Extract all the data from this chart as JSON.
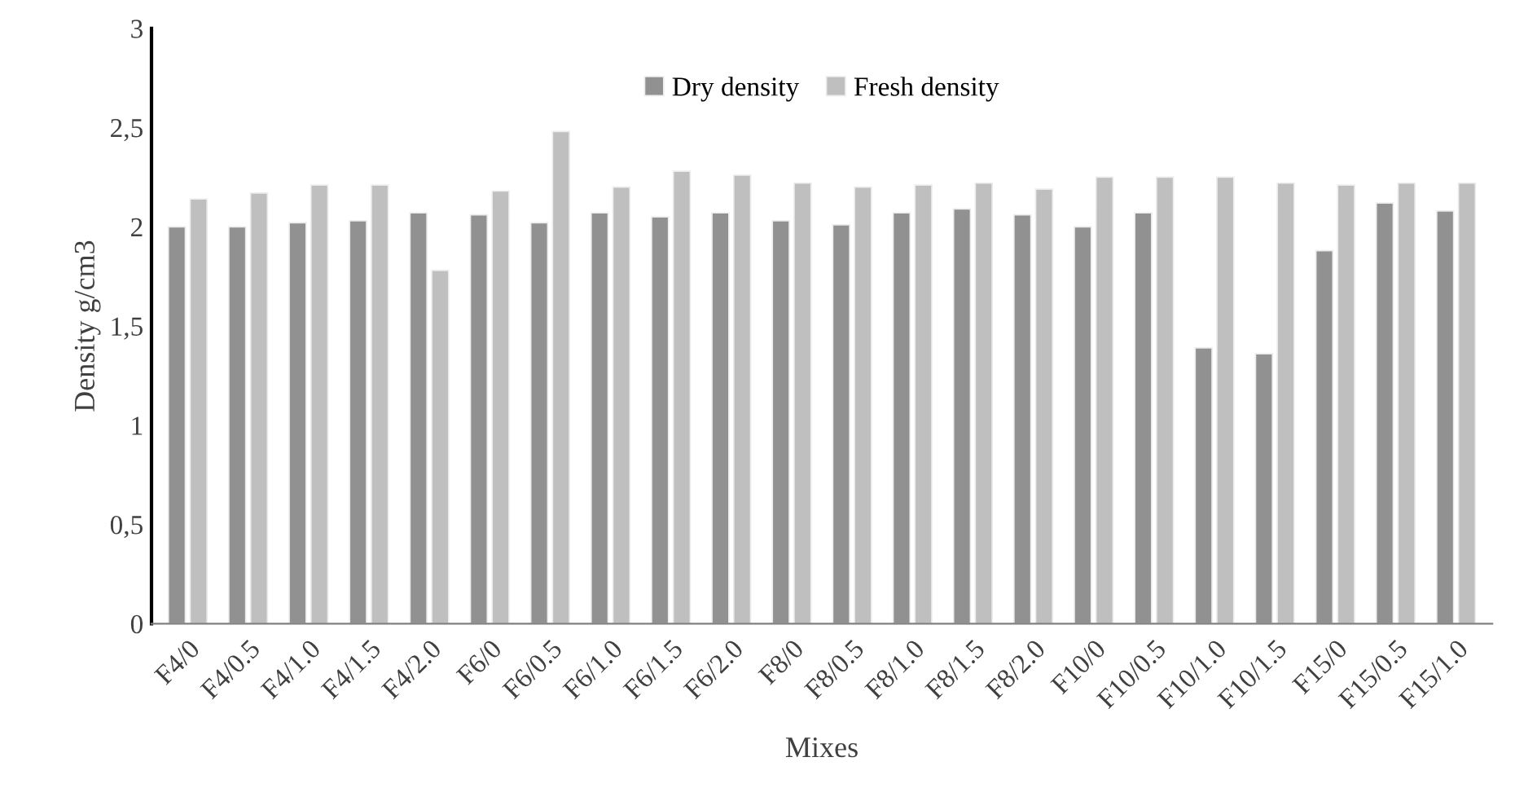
{
  "chart_data": {
    "type": "bar",
    "xlabel": "Mixes",
    "ylabel": "Density g/cm3",
    "categories": [
      "F4/0",
      "F4/0.5",
      "F4/1.0",
      "F4/1.5",
      "F4/2.0",
      "F6/0",
      "F6/0.5",
      "F6/1.0",
      "F6/1.5",
      "F6/2.0",
      "F8/0",
      "F8/0.5",
      "F8/1.0",
      "F8/1.5",
      "F8/2.0",
      "F10/0",
      "F10/0.5",
      "F10/1.0",
      "F10/1.5",
      "F15/0",
      "F15/0.5",
      "F15/1.0"
    ],
    "series": [
      {
        "name": "Dry density",
        "color": "#919191",
        "values": [
          2.0,
          2.0,
          2.02,
          2.03,
          2.07,
          2.06,
          2.02,
          2.07,
          2.05,
          2.07,
          2.03,
          2.01,
          2.07,
          2.09,
          2.06,
          2.0,
          2.07,
          1.39,
          1.36,
          1.88,
          2.12,
          2.08
        ]
      },
      {
        "name": "Fresh density",
        "color": "#bfbfbf",
        "values": [
          2.14,
          2.17,
          2.21,
          2.21,
          1.78,
          2.18,
          2.48,
          2.2,
          2.28,
          2.26,
          2.22,
          2.2,
          2.21,
          2.22,
          2.19,
          2.25,
          2.25,
          2.25,
          2.22,
          2.21,
          2.22,
          2.22
        ]
      }
    ],
    "ylim": [
      0,
      3
    ],
    "yticks": [
      {
        "value": 0,
        "label": "0"
      },
      {
        "value": 0.5,
        "label": "0,5"
      },
      {
        "value": 1,
        "label": "1"
      },
      {
        "value": 1.5,
        "label": "1,5"
      },
      {
        "value": 2,
        "label": "2"
      },
      {
        "value": 2.5,
        "label": "2,5"
      },
      {
        "value": 3,
        "label": "3"
      }
    ],
    "grid": false,
    "legend": "top"
  }
}
